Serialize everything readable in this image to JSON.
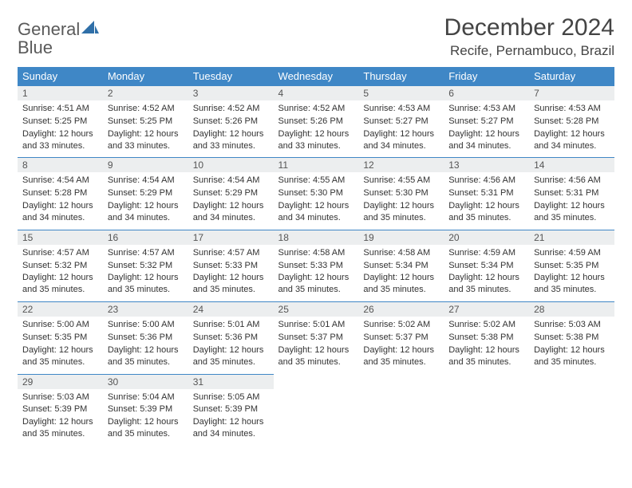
{
  "logo": {
    "word1": "General",
    "word2": "Blue"
  },
  "title": "December 2024",
  "location": "Recife, Pernambuco, Brazil",
  "colors": {
    "header_bg": "#3f87c6",
    "header_text": "#ffffff",
    "daynum_bg": "#eceeef",
    "rule": "#3f87c6",
    "logo_gray": "#5a5a5a",
    "logo_blue": "#2f6fa8"
  },
  "weekdays": [
    "Sunday",
    "Monday",
    "Tuesday",
    "Wednesday",
    "Thursday",
    "Friday",
    "Saturday"
  ],
  "weeks": [
    [
      {
        "n": "1",
        "sr": "4:51 AM",
        "ss": "5:25 PM",
        "dl": "12 hours and 33 minutes."
      },
      {
        "n": "2",
        "sr": "4:52 AM",
        "ss": "5:25 PM",
        "dl": "12 hours and 33 minutes."
      },
      {
        "n": "3",
        "sr": "4:52 AM",
        "ss": "5:26 PM",
        "dl": "12 hours and 33 minutes."
      },
      {
        "n": "4",
        "sr": "4:52 AM",
        "ss": "5:26 PM",
        "dl": "12 hours and 33 minutes."
      },
      {
        "n": "5",
        "sr": "4:53 AM",
        "ss": "5:27 PM",
        "dl": "12 hours and 34 minutes."
      },
      {
        "n": "6",
        "sr": "4:53 AM",
        "ss": "5:27 PM",
        "dl": "12 hours and 34 minutes."
      },
      {
        "n": "7",
        "sr": "4:53 AM",
        "ss": "5:28 PM",
        "dl": "12 hours and 34 minutes."
      }
    ],
    [
      {
        "n": "8",
        "sr": "4:54 AM",
        "ss": "5:28 PM",
        "dl": "12 hours and 34 minutes."
      },
      {
        "n": "9",
        "sr": "4:54 AM",
        "ss": "5:29 PM",
        "dl": "12 hours and 34 minutes."
      },
      {
        "n": "10",
        "sr": "4:54 AM",
        "ss": "5:29 PM",
        "dl": "12 hours and 34 minutes."
      },
      {
        "n": "11",
        "sr": "4:55 AM",
        "ss": "5:30 PM",
        "dl": "12 hours and 34 minutes."
      },
      {
        "n": "12",
        "sr": "4:55 AM",
        "ss": "5:30 PM",
        "dl": "12 hours and 35 minutes."
      },
      {
        "n": "13",
        "sr": "4:56 AM",
        "ss": "5:31 PM",
        "dl": "12 hours and 35 minutes."
      },
      {
        "n": "14",
        "sr": "4:56 AM",
        "ss": "5:31 PM",
        "dl": "12 hours and 35 minutes."
      }
    ],
    [
      {
        "n": "15",
        "sr": "4:57 AM",
        "ss": "5:32 PM",
        "dl": "12 hours and 35 minutes."
      },
      {
        "n": "16",
        "sr": "4:57 AM",
        "ss": "5:32 PM",
        "dl": "12 hours and 35 minutes."
      },
      {
        "n": "17",
        "sr": "4:57 AM",
        "ss": "5:33 PM",
        "dl": "12 hours and 35 minutes."
      },
      {
        "n": "18",
        "sr": "4:58 AM",
        "ss": "5:33 PM",
        "dl": "12 hours and 35 minutes."
      },
      {
        "n": "19",
        "sr": "4:58 AM",
        "ss": "5:34 PM",
        "dl": "12 hours and 35 minutes."
      },
      {
        "n": "20",
        "sr": "4:59 AM",
        "ss": "5:34 PM",
        "dl": "12 hours and 35 minutes."
      },
      {
        "n": "21",
        "sr": "4:59 AM",
        "ss": "5:35 PM",
        "dl": "12 hours and 35 minutes."
      }
    ],
    [
      {
        "n": "22",
        "sr": "5:00 AM",
        "ss": "5:35 PM",
        "dl": "12 hours and 35 minutes."
      },
      {
        "n": "23",
        "sr": "5:00 AM",
        "ss": "5:36 PM",
        "dl": "12 hours and 35 minutes."
      },
      {
        "n": "24",
        "sr": "5:01 AM",
        "ss": "5:36 PM",
        "dl": "12 hours and 35 minutes."
      },
      {
        "n": "25",
        "sr": "5:01 AM",
        "ss": "5:37 PM",
        "dl": "12 hours and 35 minutes."
      },
      {
        "n": "26",
        "sr": "5:02 AM",
        "ss": "5:37 PM",
        "dl": "12 hours and 35 minutes."
      },
      {
        "n": "27",
        "sr": "5:02 AM",
        "ss": "5:38 PM",
        "dl": "12 hours and 35 minutes."
      },
      {
        "n": "28",
        "sr": "5:03 AM",
        "ss": "5:38 PM",
        "dl": "12 hours and 35 minutes."
      }
    ],
    [
      {
        "n": "29",
        "sr": "5:03 AM",
        "ss": "5:39 PM",
        "dl": "12 hours and 35 minutes."
      },
      {
        "n": "30",
        "sr": "5:04 AM",
        "ss": "5:39 PM",
        "dl": "12 hours and 35 minutes."
      },
      {
        "n": "31",
        "sr": "5:05 AM",
        "ss": "5:39 PM",
        "dl": "12 hours and 34 minutes."
      },
      null,
      null,
      null,
      null
    ]
  ],
  "labels": {
    "sunrise": "Sunrise:",
    "sunset": "Sunset:",
    "daylight": "Daylight:"
  }
}
